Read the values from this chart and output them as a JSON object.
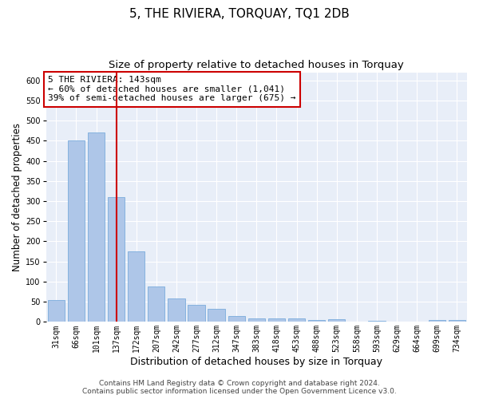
{
  "title": "5, THE RIVIERA, TORQUAY, TQ1 2DB",
  "subtitle": "Size of property relative to detached houses in Torquay",
  "xlabel": "Distribution of detached houses by size in Torquay",
  "ylabel": "Number of detached properties",
  "categories": [
    "31sqm",
    "66sqm",
    "101sqm",
    "137sqm",
    "172sqm",
    "207sqm",
    "242sqm",
    "277sqm",
    "312sqm",
    "347sqm",
    "383sqm",
    "418sqm",
    "453sqm",
    "488sqm",
    "523sqm",
    "558sqm",
    "593sqm",
    "629sqm",
    "664sqm",
    "699sqm",
    "734sqm"
  ],
  "values": [
    55,
    450,
    470,
    310,
    175,
    88,
    58,
    43,
    32,
    15,
    8,
    9,
    8,
    4,
    7,
    0,
    3,
    1,
    0,
    5,
    4
  ],
  "bar_color": "#aec6e8",
  "bar_edge_color": "#7aacdc",
  "vline_index": 3,
  "vline_color": "#cc0000",
  "annotation_line1": "5 THE RIVIERA: 143sqm",
  "annotation_line2": "← 60% of detached houses are smaller (1,041)",
  "annotation_line3": "39% of semi-detached houses are larger (675) →",
  "annotation_box_facecolor": "#ffffff",
  "annotation_box_edgecolor": "#cc0000",
  "ylim_max": 620,
  "yticks": [
    0,
    50,
    100,
    150,
    200,
    250,
    300,
    350,
    400,
    450,
    500,
    550,
    600
  ],
  "plot_bg_color": "#e8eef8",
  "footer_line1": "Contains HM Land Registry data © Crown copyright and database right 2024.",
  "footer_line2": "Contains public sector information licensed under the Open Government Licence v3.0.",
  "title_fontsize": 11,
  "subtitle_fontsize": 9.5,
  "xlabel_fontsize": 9,
  "ylabel_fontsize": 8.5,
  "tick_fontsize": 7,
  "annotation_fontsize": 8,
  "footer_fontsize": 6.5
}
